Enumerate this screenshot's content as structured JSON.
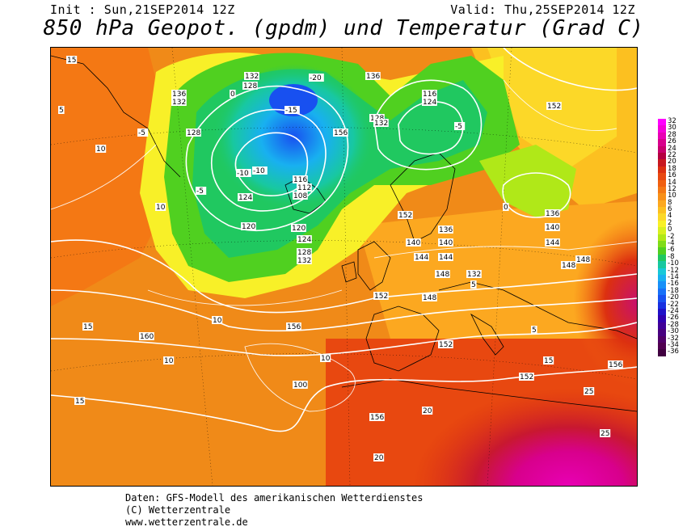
{
  "header": {
    "init": "Init : Sun,21SEP2014 12Z",
    "valid": "Valid: Thu,25SEP2014 12Z",
    "title": "850 hPa Geopot. (gpdm) und Temperatur (Grad C)"
  },
  "legend": {
    "entries": [
      {
        "label": "32",
        "color": "#ff00ff"
      },
      {
        "label": "30",
        "color": "#f400d8"
      },
      {
        "label": "28",
        "color": "#e800b4"
      },
      {
        "label": "26",
        "color": "#d8008c"
      },
      {
        "label": "24",
        "color": "#c8006c"
      },
      {
        "label": "22",
        "color": "#b40040"
      },
      {
        "label": "20",
        "color": "#c81820"
      },
      {
        "label": "18",
        "color": "#dc3010"
      },
      {
        "label": "16",
        "color": "#e84810"
      },
      {
        "label": "14",
        "color": "#f06010"
      },
      {
        "label": "12",
        "color": "#f47814"
      },
      {
        "label": "10",
        "color": "#f89018"
      },
      {
        "label": "8",
        "color": "#fca820"
      },
      {
        "label": "6",
        "color": "#fcc020"
      },
      {
        "label": "4",
        "color": "#fcd828"
      },
      {
        "label": "2",
        "color": "#f8f028"
      },
      {
        "label": "0",
        "color": "#d8f020"
      },
      {
        "label": "-2",
        "color": "#b0e818"
      },
      {
        "label": "-4",
        "color": "#80dc18"
      },
      {
        "label": "-6",
        "color": "#50d020"
      },
      {
        "label": "-8",
        "color": "#20c860"
      },
      {
        "label": "-10",
        "color": "#18c8a0"
      },
      {
        "label": "-12",
        "color": "#18c8d8"
      },
      {
        "label": "-14",
        "color": "#18b0f0"
      },
      {
        "label": "-16",
        "color": "#1890f8"
      },
      {
        "label": "-18",
        "color": "#1870f8"
      },
      {
        "label": "-20",
        "color": "#1850f0"
      },
      {
        "label": "-22",
        "color": "#1830e0"
      },
      {
        "label": "-24",
        "color": "#2010c8"
      },
      {
        "label": "-26",
        "color": "#3000b0"
      },
      {
        "label": "-28",
        "color": "#400098"
      },
      {
        "label": "-30",
        "color": "#480080"
      },
      {
        "label": "-32",
        "color": "#500068"
      },
      {
        "label": "-34",
        "color": "#500050"
      },
      {
        "label": "-36",
        "color": "#400040"
      }
    ]
  },
  "map": {
    "geopotential_labels": [
      "136",
      "132",
      "128",
      "124",
      "120",
      "116",
      "112",
      "108",
      "132",
      "128",
      "120",
      "124",
      "128",
      "132",
      "136",
      "140",
      "144",
      "148",
      "152",
      "156",
      "160",
      "100",
      "152",
      "148",
      "144",
      "140",
      "136",
      "132",
      "148",
      "152",
      "156",
      "124",
      "116",
      "128",
      "132",
      "136",
      "140",
      "144",
      "148",
      "152",
      "156",
      "152",
      "156"
    ],
    "temperature_labels": [
      "15",
      "10",
      "5",
      "0",
      "-5",
      "-10",
      "-15",
      "-20",
      "10",
      "15",
      "20",
      "25",
      "15",
      "10",
      "5",
      "0",
      "-5",
      "-10",
      "-5",
      "10",
      "15",
      "20",
      "25",
      "10",
      "5"
    ]
  },
  "footer": {
    "line1": "Daten: GFS-Modell des amerikanischen Wetterdienstes",
    "line2": "(C) Wetterzentrale",
    "line3": "www.wetterzentrale.de"
  }
}
